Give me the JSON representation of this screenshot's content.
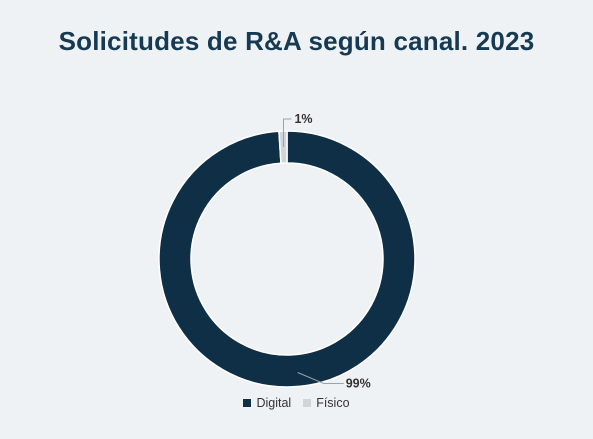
{
  "chart_data": {
    "type": "pie",
    "title": "Solicitudes de R&A según canal. 2023",
    "categories": [
      "Digital",
      "Físico"
    ],
    "values": [
      99,
      1
    ],
    "data_labels": [
      "99%",
      "1%"
    ],
    "colors": [
      "#0f2f47",
      "#cfd5d9"
    ],
    "donut": true,
    "legend_position": "bottom"
  }
}
